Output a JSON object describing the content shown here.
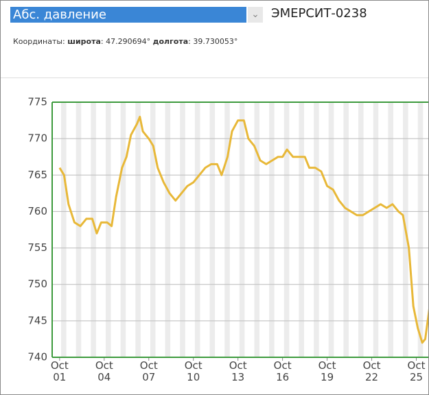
{
  "header": {
    "selected": "Абс. давление",
    "device": "ЭМЕРСИТ-0238",
    "coords_label": "Координаты:",
    "lat_label": "широта",
    "lat_value": ": 47.290694°",
    "lon_label": "долгота",
    "lon_value": ": 39.730053°"
  },
  "chart_data": {
    "type": "line",
    "x": [
      1.0,
      1.3,
      1.6,
      2.0,
      2.4,
      2.8,
      3.2,
      3.5,
      3.8,
      4.2,
      4.5,
      4.8,
      5.2,
      5.5,
      5.8,
      6.2,
      6.4,
      6.6,
      7.0,
      7.3,
      7.6,
      8.0,
      8.4,
      8.8,
      9.2,
      9.6,
      10.0,
      10.4,
      10.8,
      11.2,
      11.6,
      11.9,
      12.3,
      12.6,
      13.0,
      13.4,
      13.7,
      14.1,
      14.5,
      14.9,
      15.3,
      15.7,
      16.0,
      16.3,
      16.7,
      17.1,
      17.5,
      17.8,
      18.2,
      18.6,
      19.0,
      19.4,
      19.8,
      20.2,
      20.6,
      21.0,
      21.4,
      21.8,
      22.2,
      22.6,
      23.0,
      23.4,
      23.8,
      24.1,
      24.5,
      24.8,
      25.1,
      25.4,
      25.6,
      25.9
    ],
    "series": [
      {
        "color": "#e8b838",
        "values": [
          766,
          765,
          761,
          758.5,
          758,
          759,
          759,
          757,
          758.5,
          758.5,
          758,
          762,
          766,
          767.5,
          770.5,
          772,
          773,
          771,
          770,
          769,
          766,
          764,
          762.5,
          761.5,
          762.5,
          763.5,
          764,
          765,
          766,
          766.5,
          766.5,
          765,
          767.5,
          771,
          772.5,
          772.5,
          770,
          769,
          767,
          766.5,
          767,
          767.5,
          767.5,
          768.5,
          767.5,
          767.5,
          767.5,
          766,
          766,
          765.5,
          763.5,
          763,
          761.5,
          760.5,
          760,
          759.5,
          759.5,
          760,
          760.5,
          761,
          760.5,
          761,
          760,
          759.5,
          755,
          747,
          744,
          742,
          742.5,
          747
        ]
      }
    ],
    "xlim": [
      0.5,
      25.9
    ],
    "xticks": [
      {
        "value": 1,
        "label": "Oct 01"
      },
      {
        "value": 4,
        "label": "Oct 04"
      },
      {
        "value": 7,
        "label": "Oct 07"
      },
      {
        "value": 10,
        "label": "Oct 10"
      },
      {
        "value": 13,
        "label": "Oct 13"
      },
      {
        "value": 16,
        "label": "Oct 16"
      },
      {
        "value": 19,
        "label": "Oct 19"
      },
      {
        "value": 22,
        "label": "Oct 22"
      },
      {
        "value": 25,
        "label": "Oct 25"
      }
    ],
    "ylim": [
      740,
      775
    ],
    "yticks": [
      740,
      745,
      750,
      755,
      760,
      765,
      770,
      775
    ],
    "grid": true,
    "frame_color": "#3c9a3c"
  }
}
